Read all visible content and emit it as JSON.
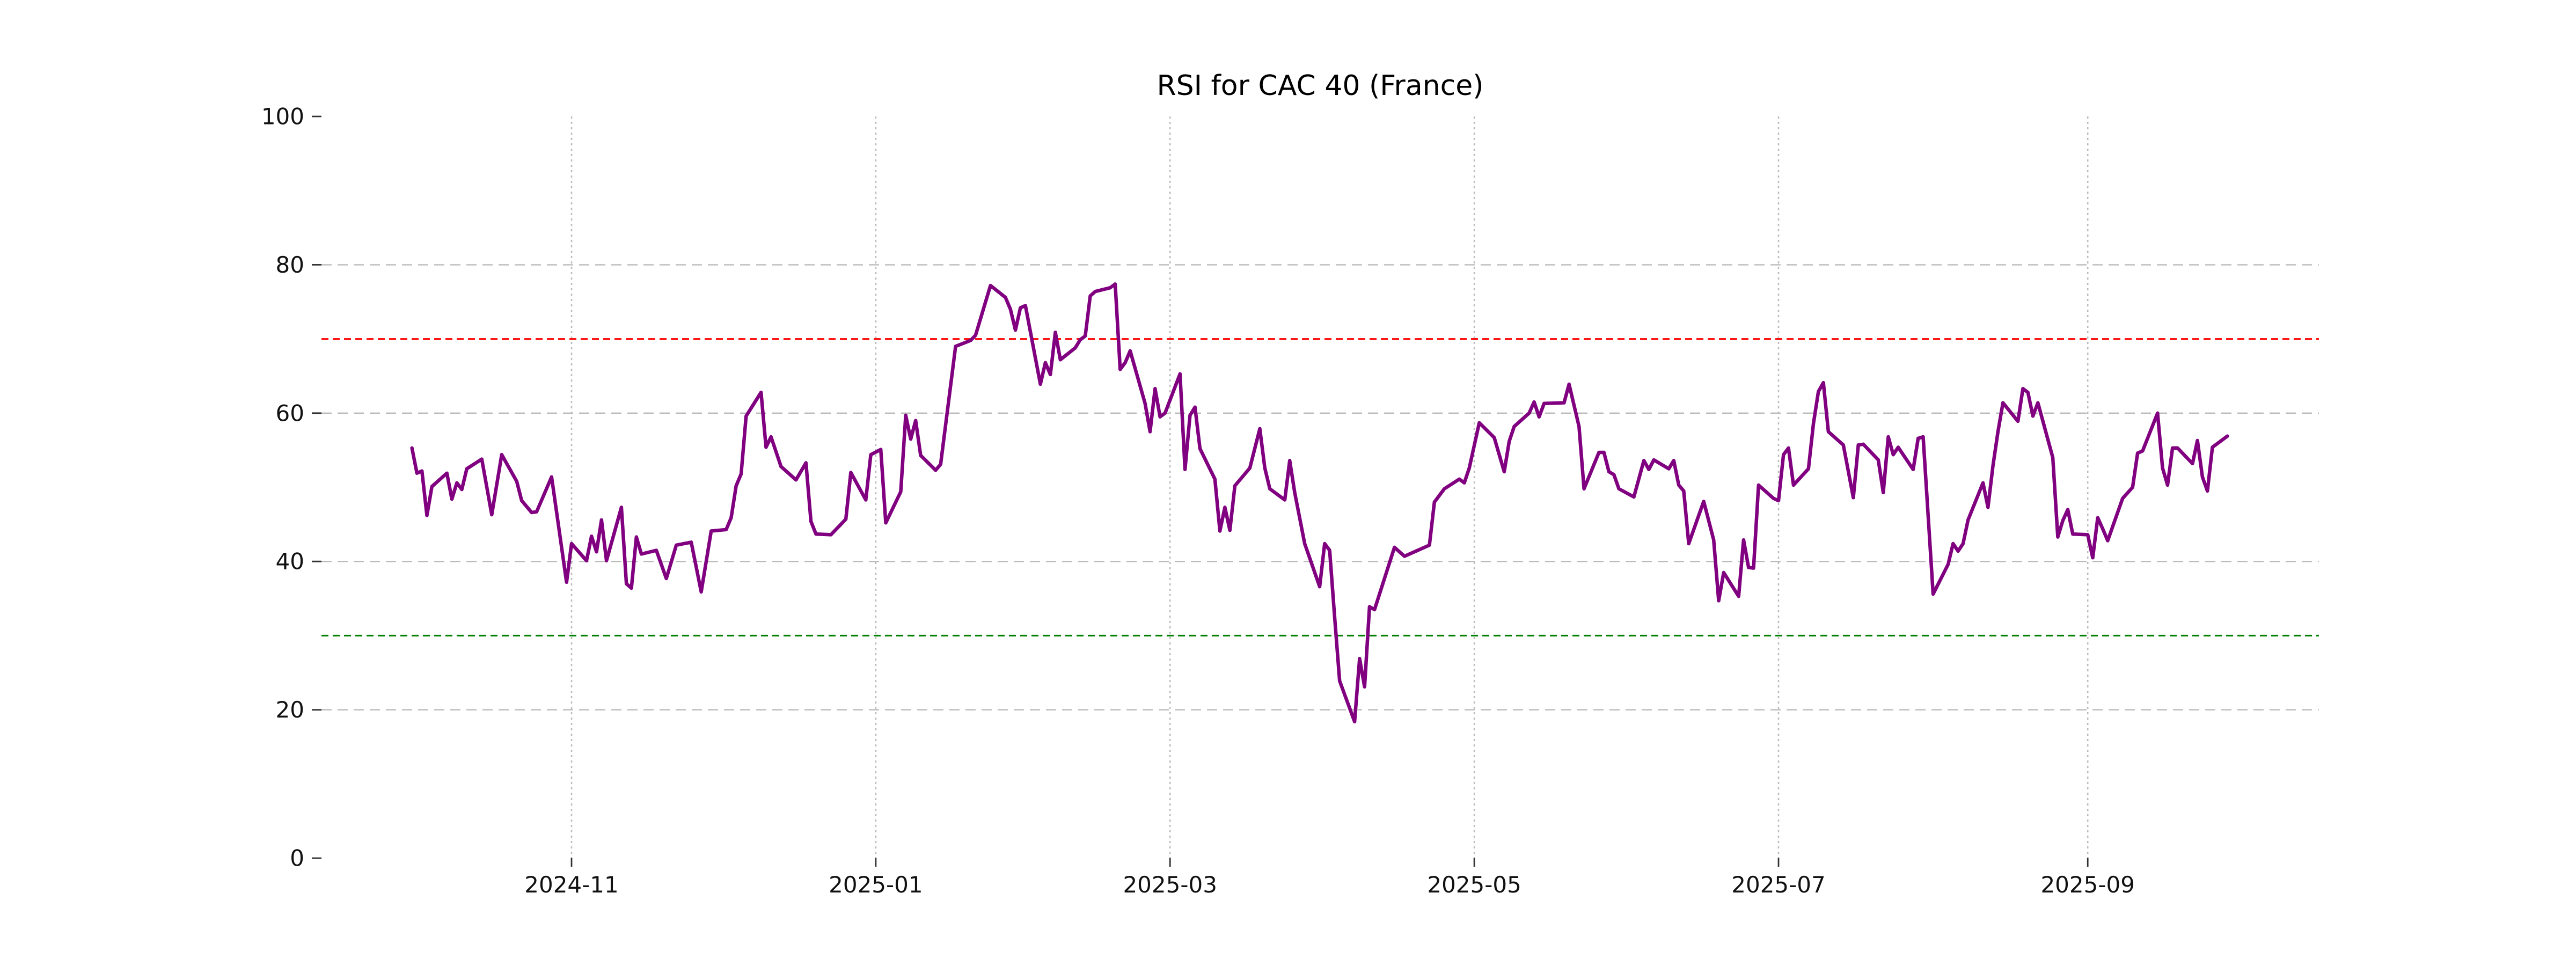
{
  "chart_data": {
    "type": "line",
    "title": "RSI for CAC 40 (France)",
    "xlabel": "",
    "ylabel": "",
    "ylim": [
      0,
      100
    ],
    "yticks": [
      0,
      20,
      40,
      60,
      80,
      100
    ],
    "grid": true,
    "legend": "none",
    "xticks": [
      {
        "label": "2024-11",
        "date": "2024-11-01"
      },
      {
        "label": "2025-01",
        "date": "2025-01-01"
      },
      {
        "label": "2025-03",
        "date": "2025-03-01"
      },
      {
        "label": "2025-05",
        "date": "2025-05-01"
      },
      {
        "label": "2025-07",
        "date": "2025-07-01"
      },
      {
        "label": "2025-09",
        "date": "2025-09-01"
      }
    ],
    "levels": {
      "overbought": {
        "value": 70,
        "color": "#ff0000",
        "style": "dashed"
      },
      "oversold": {
        "value": 30,
        "color": "#008000",
        "style": "dashed"
      }
    },
    "line_color": "#800080",
    "grid_color": "#bbbbbb",
    "series": [
      {
        "name": "RSI",
        "points": [
          [
            "2024-09-30",
            55.3
          ],
          [
            "2024-10-01",
            51.9
          ],
          [
            "2024-10-02",
            52.2
          ],
          [
            "2024-10-03",
            46.2
          ],
          [
            "2024-10-04",
            50.1
          ],
          [
            "2024-10-07",
            51.9
          ],
          [
            "2024-10-08",
            48.4
          ],
          [
            "2024-10-09",
            50.6
          ],
          [
            "2024-10-10",
            49.7
          ],
          [
            "2024-10-11",
            52.5
          ],
          [
            "2024-10-14",
            53.8
          ],
          [
            "2024-10-16",
            46.3
          ],
          [
            "2024-10-18",
            54.4
          ],
          [
            "2024-10-21",
            50.8
          ],
          [
            "2024-10-22",
            48.2
          ],
          [
            "2024-10-24",
            46.6
          ],
          [
            "2024-10-25",
            46.7
          ],
          [
            "2024-10-28",
            51.4
          ],
          [
            "2024-10-31",
            37.2
          ],
          [
            "2024-11-01",
            42.4
          ],
          [
            "2024-11-04",
            40.1
          ],
          [
            "2024-11-05",
            43.4
          ],
          [
            "2024-11-06",
            41.3
          ],
          [
            "2024-11-07",
            45.6
          ],
          [
            "2024-11-08",
            40.1
          ],
          [
            "2024-11-11",
            47.3
          ],
          [
            "2024-11-12",
            37.0
          ],
          [
            "2024-11-13",
            36.4
          ],
          [
            "2024-11-14",
            43.3
          ],
          [
            "2024-11-15",
            41.0
          ],
          [
            "2024-11-18",
            41.5
          ],
          [
            "2024-11-20",
            37.7
          ],
          [
            "2024-11-22",
            42.2
          ],
          [
            "2024-11-25",
            42.6
          ],
          [
            "2024-11-27",
            35.9
          ],
          [
            "2024-11-29",
            44.1
          ],
          [
            "2024-12-02",
            44.3
          ],
          [
            "2024-12-03",
            45.9
          ],
          [
            "2024-12-04",
            50.2
          ],
          [
            "2024-12-05",
            51.8
          ],
          [
            "2024-12-06",
            59.6
          ],
          [
            "2024-12-09",
            62.8
          ],
          [
            "2024-12-10",
            55.4
          ],
          [
            "2024-12-11",
            56.8
          ],
          [
            "2024-12-13",
            52.8
          ],
          [
            "2024-12-16",
            51.0
          ],
          [
            "2024-12-18",
            53.3
          ],
          [
            "2024-12-19",
            45.4
          ],
          [
            "2024-12-20",
            43.7
          ],
          [
            "2024-12-23",
            43.6
          ],
          [
            "2024-12-26",
            45.7
          ],
          [
            "2024-12-27",
            52.0
          ],
          [
            "2024-12-30",
            48.3
          ],
          [
            "2024-12-31",
            54.4
          ],
          [
            "2025-01-02",
            55.1
          ],
          [
            "2025-01-03",
            45.2
          ],
          [
            "2025-01-06",
            49.4
          ],
          [
            "2025-01-07",
            59.7
          ],
          [
            "2025-01-08",
            56.5
          ],
          [
            "2025-01-09",
            59.0
          ],
          [
            "2025-01-10",
            54.3
          ],
          [
            "2025-01-13",
            52.3
          ],
          [
            "2025-01-14",
            53.1
          ],
          [
            "2025-01-17",
            69.0
          ],
          [
            "2025-01-20",
            69.8
          ],
          [
            "2025-01-21",
            70.5
          ],
          [
            "2025-01-24",
            77.2
          ],
          [
            "2025-01-27",
            75.6
          ],
          [
            "2025-01-28",
            74.0
          ],
          [
            "2025-01-29",
            71.2
          ],
          [
            "2025-01-30",
            74.2
          ],
          [
            "2025-01-31",
            74.5
          ],
          [
            "2025-02-03",
            63.9
          ],
          [
            "2025-02-04",
            66.8
          ],
          [
            "2025-02-05",
            65.2
          ],
          [
            "2025-02-06",
            70.9
          ],
          [
            "2025-02-07",
            67.2
          ],
          [
            "2025-02-10",
            68.8
          ],
          [
            "2025-02-11",
            69.9
          ],
          [
            "2025-02-12",
            70.4
          ],
          [
            "2025-02-13",
            75.8
          ],
          [
            "2025-02-14",
            76.4
          ],
          [
            "2025-02-17",
            76.9
          ],
          [
            "2025-02-18",
            77.4
          ],
          [
            "2025-02-19",
            65.9
          ],
          [
            "2025-02-20",
            66.8
          ],
          [
            "2025-02-21",
            68.4
          ],
          [
            "2025-02-24",
            61.3
          ],
          [
            "2025-02-25",
            57.5
          ],
          [
            "2025-02-26",
            63.3
          ],
          [
            "2025-02-27",
            59.5
          ],
          [
            "2025-02-28",
            60.0
          ],
          [
            "2025-03-03",
            65.3
          ],
          [
            "2025-03-04",
            52.4
          ],
          [
            "2025-03-05",
            59.7
          ],
          [
            "2025-03-06",
            60.8
          ],
          [
            "2025-03-07",
            55.2
          ],
          [
            "2025-03-10",
            51.1
          ],
          [
            "2025-03-11",
            44.1
          ],
          [
            "2025-03-12",
            47.3
          ],
          [
            "2025-03-13",
            44.2
          ],
          [
            "2025-03-14",
            50.2
          ],
          [
            "2025-03-17",
            52.6
          ],
          [
            "2025-03-19",
            57.9
          ],
          [
            "2025-03-20",
            52.6
          ],
          [
            "2025-03-21",
            49.8
          ],
          [
            "2025-03-24",
            48.3
          ],
          [
            "2025-03-25",
            53.6
          ],
          [
            "2025-03-26",
            49.3
          ],
          [
            "2025-03-28",
            42.4
          ],
          [
            "2025-03-31",
            36.6
          ],
          [
            "2025-04-01",
            42.4
          ],
          [
            "2025-04-02",
            41.5
          ],
          [
            "2025-04-03",
            32.5
          ],
          [
            "2025-04-04",
            23.9
          ],
          [
            "2025-04-07",
            18.4
          ],
          [
            "2025-04-08",
            26.9
          ],
          [
            "2025-04-09",
            23.1
          ],
          [
            "2025-04-10",
            33.9
          ],
          [
            "2025-04-11",
            33.5
          ],
          [
            "2025-04-15",
            41.9
          ],
          [
            "2025-04-17",
            40.7
          ],
          [
            "2025-04-22",
            42.2
          ],
          [
            "2025-04-23",
            48.0
          ],
          [
            "2025-04-25",
            49.8
          ],
          [
            "2025-04-28",
            51.1
          ],
          [
            "2025-04-29",
            50.6
          ],
          [
            "2025-04-30",
            52.6
          ],
          [
            "2025-05-02",
            58.7
          ],
          [
            "2025-05-05",
            56.7
          ],
          [
            "2025-05-07",
            52.1
          ],
          [
            "2025-05-08",
            56.2
          ],
          [
            "2025-05-09",
            58.2
          ],
          [
            "2025-05-12",
            60.0
          ],
          [
            "2025-05-13",
            61.5
          ],
          [
            "2025-05-14",
            59.5
          ],
          [
            "2025-05-15",
            61.3
          ],
          [
            "2025-05-19",
            61.4
          ],
          [
            "2025-05-20",
            63.9
          ],
          [
            "2025-05-22",
            58.2
          ],
          [
            "2025-05-23",
            49.8
          ],
          [
            "2025-05-26",
            54.7
          ],
          [
            "2025-05-27",
            54.7
          ],
          [
            "2025-05-28",
            52.1
          ],
          [
            "2025-05-29",
            51.7
          ],
          [
            "2025-05-30",
            49.8
          ],
          [
            "2025-06-02",
            48.7
          ],
          [
            "2025-06-04",
            53.6
          ],
          [
            "2025-06-05",
            52.4
          ],
          [
            "2025-06-06",
            53.7
          ],
          [
            "2025-06-09",
            52.5
          ],
          [
            "2025-06-10",
            53.6
          ],
          [
            "2025-06-11",
            50.3
          ],
          [
            "2025-06-12",
            49.5
          ],
          [
            "2025-06-13",
            42.4
          ],
          [
            "2025-06-16",
            48.1
          ],
          [
            "2025-06-18",
            42.9
          ],
          [
            "2025-06-19",
            34.7
          ],
          [
            "2025-06-20",
            38.5
          ],
          [
            "2025-06-23",
            35.3
          ],
          [
            "2025-06-24",
            42.9
          ],
          [
            "2025-06-25",
            39.2
          ],
          [
            "2025-06-26",
            39.1
          ],
          [
            "2025-06-27",
            50.3
          ],
          [
            "2025-06-30",
            48.5
          ],
          [
            "2025-07-01",
            48.2
          ],
          [
            "2025-07-02",
            54.4
          ],
          [
            "2025-07-03",
            55.3
          ],
          [
            "2025-07-04",
            50.3
          ],
          [
            "2025-07-07",
            52.5
          ],
          [
            "2025-07-08",
            58.6
          ],
          [
            "2025-07-09",
            62.9
          ],
          [
            "2025-07-10",
            64.1
          ],
          [
            "2025-07-11",
            57.5
          ],
          [
            "2025-07-14",
            55.7
          ],
          [
            "2025-07-16",
            48.6
          ],
          [
            "2025-07-17",
            55.7
          ],
          [
            "2025-07-18",
            55.8
          ],
          [
            "2025-07-21",
            53.7
          ],
          [
            "2025-07-22",
            49.3
          ],
          [
            "2025-07-23",
            56.8
          ],
          [
            "2025-07-24",
            54.4
          ],
          [
            "2025-07-25",
            55.4
          ],
          [
            "2025-07-28",
            52.4
          ],
          [
            "2025-07-29",
            56.6
          ],
          [
            "2025-07-30",
            56.8
          ],
          [
            "2025-08-01",
            35.6
          ],
          [
            "2025-08-04",
            39.6
          ],
          [
            "2025-08-05",
            42.4
          ],
          [
            "2025-08-06",
            41.4
          ],
          [
            "2025-08-07",
            42.4
          ],
          [
            "2025-08-08",
            45.6
          ],
          [
            "2025-08-11",
            50.6
          ],
          [
            "2025-08-12",
            47.3
          ],
          [
            "2025-08-13",
            52.9
          ],
          [
            "2025-08-14",
            57.5
          ],
          [
            "2025-08-15",
            61.4
          ],
          [
            "2025-08-18",
            58.9
          ],
          [
            "2025-08-19",
            63.3
          ],
          [
            "2025-08-20",
            62.8
          ],
          [
            "2025-08-21",
            59.6
          ],
          [
            "2025-08-22",
            61.4
          ],
          [
            "2025-08-25",
            54.0
          ],
          [
            "2025-08-26",
            43.3
          ],
          [
            "2025-08-27",
            45.5
          ],
          [
            "2025-08-28",
            47.0
          ],
          [
            "2025-08-29",
            43.7
          ],
          [
            "2025-09-01",
            43.6
          ],
          [
            "2025-09-02",
            40.5
          ],
          [
            "2025-09-03",
            45.9
          ],
          [
            "2025-09-04",
            44.4
          ],
          [
            "2025-09-05",
            42.8
          ],
          [
            "2025-09-08",
            48.5
          ],
          [
            "2025-09-10",
            50.0
          ],
          [
            "2025-09-11",
            54.6
          ],
          [
            "2025-09-12",
            54.9
          ],
          [
            "2025-09-15",
            60.0
          ],
          [
            "2025-09-16",
            52.6
          ],
          [
            "2025-09-17",
            50.3
          ],
          [
            "2025-09-18",
            55.3
          ],
          [
            "2025-09-19",
            55.3
          ],
          [
            "2025-09-22",
            53.2
          ],
          [
            "2025-09-23",
            56.3
          ],
          [
            "2025-09-24",
            51.4
          ],
          [
            "2025-09-25",
            49.5
          ],
          [
            "2025-09-26",
            55.4
          ],
          [
            "2025-09-29",
            56.9
          ]
        ]
      }
    ]
  }
}
